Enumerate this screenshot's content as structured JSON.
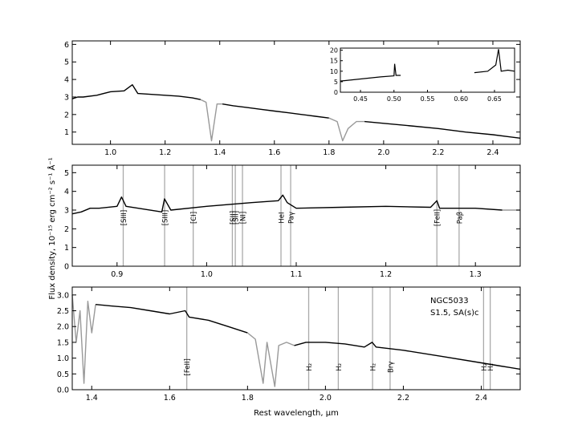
{
  "figure": {
    "ylabel": "Flux density, 10⁻¹⁵ erg cm⁻² s⁻¹ Å⁻¹",
    "xlabel": "Rest wavelength, μm"
  },
  "colors": {
    "spectrum": "#000000",
    "masked": "#999999",
    "line_marker": "#aaaaaa",
    "axis": "#000000"
  },
  "chart_data": [
    {
      "type": "line",
      "panel": "top",
      "xlim": [
        0.86,
        2.5
      ],
      "ylim": [
        0.3,
        6.2
      ],
      "xticks": [
        1.0,
        1.2,
        1.4,
        1.6,
        1.8,
        2.0,
        2.2,
        2.4
      ],
      "xtick_labels": [
        "1.0",
        "1.2",
        "1.4",
        "1.6",
        "1.8",
        "2.0",
        "2.2",
        "2.4"
      ],
      "yticks": [
        1,
        2,
        3,
        4,
        5,
        6
      ],
      "ytick_labels": [
        "1",
        "2",
        "3",
        "4",
        "5",
        "6"
      ],
      "series": [
        {
          "style": "black",
          "x": [
            0.86,
            0.88,
            0.9,
            0.95,
            1.0,
            1.05,
            1.08,
            1.1,
            1.15,
            1.2,
            1.25,
            1.3,
            1.33
          ],
          "y": [
            2.9,
            3.0,
            3.0,
            3.1,
            3.3,
            3.35,
            3.7,
            3.2,
            3.15,
            3.1,
            3.05,
            2.95,
            2.85
          ]
        },
        {
          "style": "gray",
          "x": [
            1.33,
            1.35,
            1.37,
            1.39,
            1.41
          ],
          "y": [
            2.85,
            2.7,
            0.5,
            2.6,
            2.6
          ]
        },
        {
          "style": "black",
          "x": [
            1.41,
            1.45,
            1.5,
            1.55,
            1.6,
            1.65,
            1.7,
            1.75,
            1.8
          ],
          "y": [
            2.6,
            2.5,
            2.4,
            2.3,
            2.2,
            2.1,
            2.0,
            1.9,
            1.8
          ]
        },
        {
          "style": "gray",
          "x": [
            1.8,
            1.83,
            1.85,
            1.87,
            1.9,
            1.93
          ],
          "y": [
            1.8,
            1.6,
            0.5,
            1.2,
            1.6,
            1.6
          ]
        },
        {
          "style": "black",
          "x": [
            1.93,
            2.0,
            2.1,
            2.2,
            2.3,
            2.4,
            2.5
          ],
          "y": [
            1.6,
            1.5,
            1.35,
            1.2,
            1.0,
            0.85,
            0.65
          ]
        }
      ],
      "inset": {
        "xlim": [
          0.42,
          0.68
        ],
        "ylim": [
          0,
          21
        ],
        "xticks": [
          0.45,
          0.5,
          0.55,
          0.6,
          0.65
        ],
        "xtick_labels": [
          "0.45",
          "0.50",
          "0.55",
          "0.60",
          "0.65"
        ],
        "yticks": [
          0,
          5,
          10,
          15,
          20
        ],
        "ytick_labels": [
          "0",
          "5",
          "10",
          "15",
          "20"
        ],
        "series": [
          {
            "x": [
              0.42,
              0.45,
              0.48,
              0.5,
              0.501,
              0.503,
              0.51
            ],
            "y": [
              5.3,
              6.3,
              7.3,
              7.8,
              13.5,
              8.0,
              8.0
            ]
          },
          {
            "x": [
              0.62,
              0.64,
              0.652,
              0.656,
              0.66,
              0.67,
              0.68
            ],
            "y": [
              9.3,
              10.0,
              13.0,
              20.5,
              10.0,
              10.5,
              10.0
            ]
          }
        ]
      }
    },
    {
      "type": "line",
      "panel": "middle",
      "xlim": [
        0.85,
        1.35
      ],
      "ylim": [
        0,
        5.4
      ],
      "xticks": [
        0.9,
        1.0,
        1.1,
        1.2,
        1.3
      ],
      "xtick_labels": [
        "0.9",
        "1.0",
        "1.1",
        "1.2",
        "1.3"
      ],
      "yticks": [
        0,
        1,
        2,
        3,
        4,
        5
      ],
      "ytick_labels": [
        "0",
        "1",
        "2",
        "3",
        "4",
        "5"
      ],
      "series": [
        {
          "style": "black",
          "x": [
            0.85,
            0.86,
            0.87,
            0.88,
            0.9,
            0.905,
            0.91,
            0.95,
            0.953,
            0.96,
            1.0,
            1.05,
            1.08,
            1.085,
            1.09,
            1.1,
            1.15,
            1.2,
            1.25,
            1.257,
            1.26,
            1.3,
            1.33
          ],
          "y": [
            2.8,
            2.9,
            3.1,
            3.1,
            3.2,
            3.7,
            3.2,
            2.9,
            3.6,
            3.0,
            3.2,
            3.4,
            3.5,
            3.8,
            3.4,
            3.1,
            3.15,
            3.2,
            3.15,
            3.5,
            3.1,
            3.1,
            3.0
          ]
        },
        {
          "style": "gray",
          "x": [
            1.33,
            1.35
          ],
          "y": [
            3.0,
            3.0
          ]
        }
      ],
      "line_markers": [
        {
          "x": 0.9069,
          "label": "[SIII]"
        },
        {
          "x": 0.9531,
          "label": "[SIII]"
        },
        {
          "x": 0.985,
          "label": "[CI]"
        },
        {
          "x": 1.0287,
          "label": "[SII]"
        },
        {
          "x": 1.032,
          "label": "[SII]"
        },
        {
          "x": 1.04,
          "label": "[NI]"
        },
        {
          "x": 1.083,
          "label": "HeI"
        },
        {
          "x": 1.0938,
          "label": "Paγ"
        },
        {
          "x": 1.257,
          "label": "[FeII]"
        },
        {
          "x": 1.2818,
          "label": "Paβ"
        }
      ]
    },
    {
      "type": "line",
      "panel": "bottom",
      "xlim": [
        1.35,
        2.5
      ],
      "ylim": [
        0,
        3.25
      ],
      "xticks": [
        1.4,
        1.6,
        1.8,
        2.0,
        2.2,
        2.4
      ],
      "xtick_labels": [
        "1.4",
        "1.6",
        "1.8",
        "2.0",
        "2.2",
        "2.4"
      ],
      "yticks": [
        0.0,
        0.5,
        1.0,
        1.5,
        2.0,
        2.5,
        3.0
      ],
      "ytick_labels": [
        "0.0",
        "0.5",
        "1.0",
        "1.5",
        "2.0",
        "2.5",
        "3.0"
      ],
      "series": [
        {
          "style": "gray",
          "x": [
            1.35,
            1.36,
            1.37,
            1.38,
            1.39,
            1.4,
            1.41
          ],
          "y": [
            3.0,
            1.5,
            2.5,
            0.2,
            2.8,
            1.8,
            2.7
          ]
        },
        {
          "style": "black",
          "x": [
            1.41,
            1.45,
            1.5,
            1.55,
            1.6,
            1.64,
            1.65,
            1.7,
            1.75,
            1.8
          ],
          "y": [
            2.7,
            2.65,
            2.6,
            2.5,
            2.4,
            2.5,
            2.3,
            2.2,
            2.0,
            1.8
          ]
        },
        {
          "style": "gray",
          "x": [
            1.8,
            1.82,
            1.84,
            1.85,
            1.87,
            1.88,
            1.9,
            1.92
          ],
          "y": [
            1.8,
            1.6,
            0.2,
            1.5,
            0.1,
            1.4,
            1.5,
            1.4
          ]
        },
        {
          "style": "black",
          "x": [
            1.92,
            1.95,
            2.0,
            2.05,
            2.1,
            2.12,
            2.13,
            2.2,
            2.3,
            2.4,
            2.45,
            2.5
          ],
          "y": [
            1.4,
            1.5,
            1.5,
            1.45,
            1.35,
            1.5,
            1.35,
            1.25,
            1.05,
            0.85,
            0.75,
            0.65
          ]
        }
      ],
      "line_markers": [
        {
          "x": 1.644,
          "label": "[FeII]"
        },
        {
          "x": 1.957,
          "label": "H₂"
        },
        {
          "x": 2.033,
          "label": "H₂"
        },
        {
          "x": 2.121,
          "label": "H₂"
        },
        {
          "x": 2.166,
          "label": "Brγ"
        },
        {
          "x": 2.406,
          "label": "H₂"
        },
        {
          "x": 2.423,
          "label": "H₂"
        }
      ],
      "annotation": [
        "NGC5033",
        "S1.5,  SA(s)c"
      ]
    }
  ]
}
